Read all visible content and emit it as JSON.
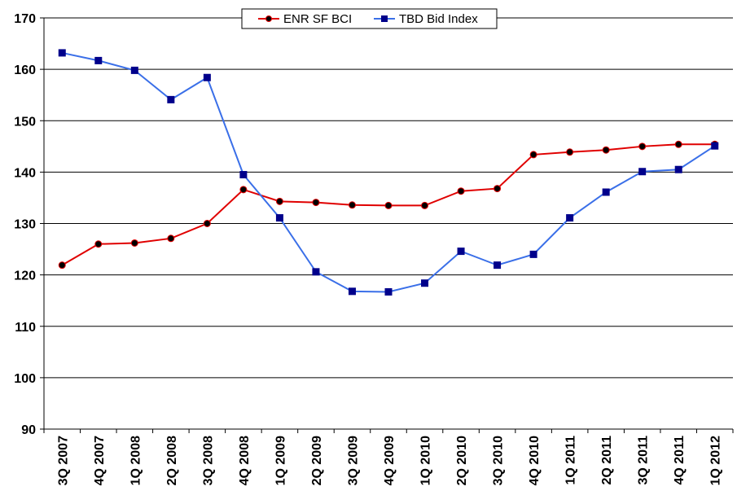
{
  "chart_data": {
    "type": "line",
    "title": "",
    "xlabel": "",
    "ylabel": "",
    "ylim": [
      90,
      170
    ],
    "yticks": [
      90,
      100,
      110,
      120,
      130,
      140,
      150,
      160,
      170
    ],
    "grid": "horizontal",
    "legend_position": "top-center",
    "categories": [
      "3Q 2007",
      "4Q 2007",
      "1Q 2008",
      "2Q 2008",
      "3Q 2008",
      "4Q 2008",
      "1Q 2009",
      "2Q 2009",
      "3Q 2009",
      "4Q 2009",
      "1Q 2010",
      "2Q 2010",
      "3Q 2010",
      "4Q 2010",
      "1Q 2011",
      "2Q 2011",
      "3Q 2011",
      "4Q 2011",
      "1Q 2012"
    ],
    "series": [
      {
        "name": "ENR SF BCI",
        "color": "#e00000",
        "marker": "circle",
        "marker_color": "#000000",
        "values": [
          121.9,
          126.0,
          126.2,
          127.1,
          130.0,
          136.6,
          134.3,
          134.1,
          133.6,
          133.5,
          133.5,
          136.3,
          136.8,
          143.4,
          143.9,
          144.3,
          145.0,
          145.4,
          145.4
        ]
      },
      {
        "name": "TBD Bid Index",
        "color": "#3a6fe8",
        "marker": "square",
        "marker_color": "#00008b",
        "values": [
          163.2,
          161.7,
          159.8,
          154.1,
          158.4,
          139.5,
          131.1,
          120.6,
          116.8,
          116.7,
          118.4,
          124.6,
          121.9,
          124.0,
          131.1,
          136.1,
          140.1,
          140.5,
          145.1
        ]
      }
    ]
  }
}
